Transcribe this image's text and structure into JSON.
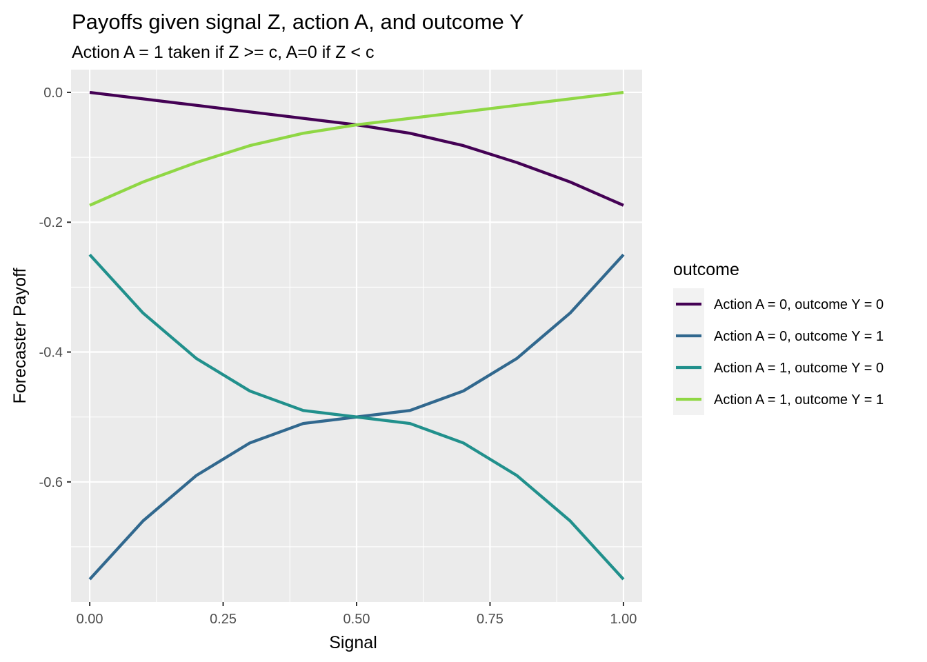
{
  "chart_data": {
    "type": "line",
    "title": "Payoffs given signal Z, action A, and outcome Y",
    "subtitle": "Action A = 1 taken if Z >= c, A=0 if Z < c",
    "xlabel": "Signal",
    "ylabel": "Forecaster Payoff",
    "xlim": [
      -0.035,
      1.035
    ],
    "ylim": [
      -0.785,
      0.035
    ],
    "x_ticks": [
      0,
      0.25,
      0.5,
      0.75,
      1
    ],
    "x_tick_labels": [
      "0.00",
      "0.25",
      "0.50",
      "0.75",
      "1.00"
    ],
    "y_ticks": [
      0,
      -0.2,
      -0.4,
      -0.6
    ],
    "y_tick_labels": [
      "0.0",
      "-0.2",
      "-0.4",
      "-0.6"
    ],
    "grid": true,
    "legend": {
      "title": "outcome",
      "position": "right"
    },
    "x": [
      0,
      0.1,
      0.2,
      0.3,
      0.4,
      0.5,
      0.6,
      0.7,
      0.8,
      0.9,
      1.0
    ],
    "series": [
      {
        "name": "Action A = 0, outcome Y = 0",
        "color": "#440154",
        "values": [
          0.0,
          -0.01,
          -0.02,
          -0.03,
          -0.04,
          -0.05,
          -0.063,
          -0.082,
          -0.108,
          -0.138,
          -0.174
        ]
      },
      {
        "name": "Action A = 0, outcome Y = 1",
        "color": "#31688E",
        "values": [
          -0.75,
          -0.66,
          -0.59,
          -0.54,
          -0.51,
          -0.5,
          -0.49,
          -0.46,
          -0.41,
          -0.34,
          -0.25
        ]
      },
      {
        "name": "Action A = 1, outcome Y = 0",
        "color": "#21908C",
        "values": [
          -0.25,
          -0.34,
          -0.41,
          -0.46,
          -0.49,
          -0.5,
          -0.51,
          -0.54,
          -0.59,
          -0.66,
          -0.75
        ]
      },
      {
        "name": "Action A = 1, outcome Y = 1",
        "color": "#8FD744",
        "values": [
          -0.174,
          -0.138,
          -0.108,
          -0.082,
          -0.063,
          -0.05,
          -0.04,
          -0.03,
          -0.02,
          -0.01,
          0.0
        ]
      }
    ]
  }
}
